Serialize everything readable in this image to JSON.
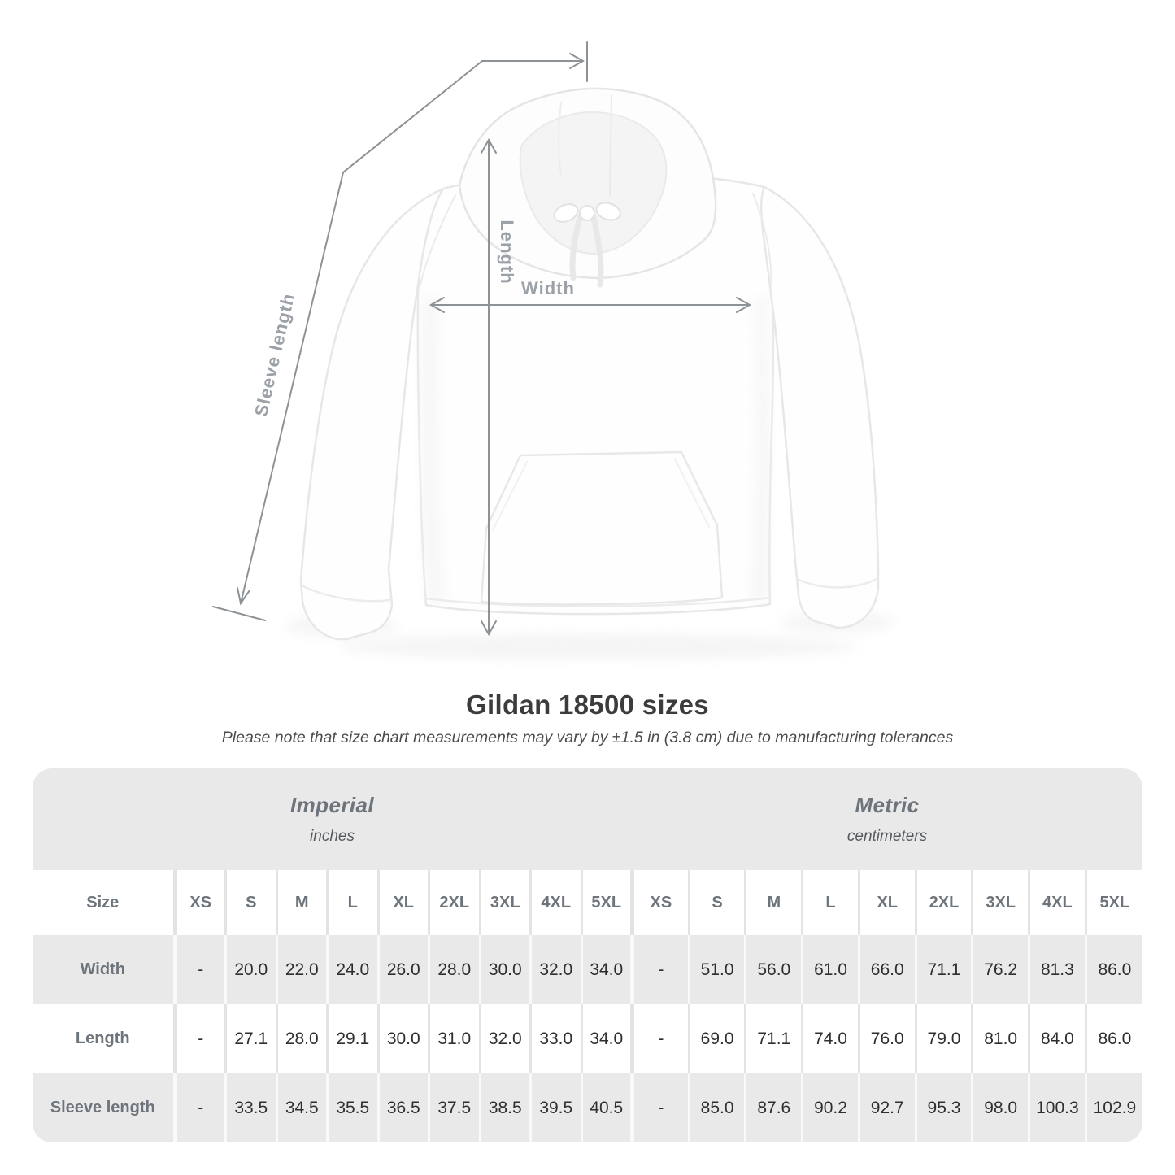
{
  "diagram": {
    "length_label": "Length",
    "width_label": "Width",
    "sleeve_label": "Sleeve length"
  },
  "heading": {
    "title": "Gildan 18500 sizes",
    "note": "Please note that size chart measurements may vary by ±1.5 in (3.8 cm) due to manufacturing tolerances"
  },
  "size_table": {
    "corner_header": "Size",
    "groups": [
      {
        "name": "Imperial",
        "unit": "inches"
      },
      {
        "name": "Metric",
        "unit": "centimeters"
      }
    ],
    "sizes": [
      "XS",
      "S",
      "M",
      "L",
      "XL",
      "2XL",
      "3XL",
      "4XL",
      "5XL"
    ],
    "rows": [
      {
        "label": "Width",
        "imperial": [
          "-",
          "20.0",
          "22.0",
          "24.0",
          "26.0",
          "28.0",
          "30.0",
          "32.0",
          "34.0"
        ],
        "metric": [
          "-",
          "51.0",
          "56.0",
          "61.0",
          "66.0",
          "71.1",
          "76.2",
          "81.3",
          "86.0"
        ]
      },
      {
        "label": "Length",
        "imperial": [
          "-",
          "27.1",
          "28.0",
          "29.1",
          "30.0",
          "31.0",
          "32.0",
          "33.0",
          "34.0"
        ],
        "metric": [
          "-",
          "69.0",
          "71.1",
          "74.0",
          "76.0",
          "79.0",
          "81.0",
          "84.0",
          "86.0"
        ]
      },
      {
        "label": "Sleeve length",
        "imperial": [
          "-",
          "33.5",
          "34.5",
          "35.5",
          "36.5",
          "37.5",
          "38.5",
          "39.5",
          "40.5"
        ],
        "metric": [
          "-",
          "85.0",
          "87.6",
          "90.2",
          "92.7",
          "95.3",
          "98.0",
          "100.3",
          "102.9"
        ]
      }
    ]
  },
  "colors": {
    "table_band": "#e9e9e9",
    "measure_line": "#8d9297",
    "measure_label": "#9ba1a7",
    "header_text": "#6d747b",
    "value_text": "#2e2e2e"
  }
}
